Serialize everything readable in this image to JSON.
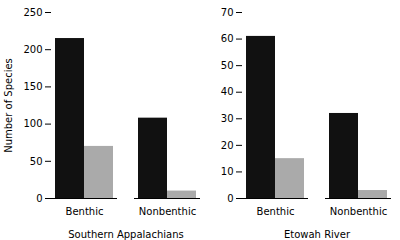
{
  "chart_data": [
    {
      "type": "bar",
      "xlabel": "Southern Appalachians",
      "ylabel": "Number of Species",
      "categories": [
        "Benthic",
        "Nonbenthic"
      ],
      "series": [
        {
          "color": "#111111",
          "values": [
            215,
            108
          ]
        },
        {
          "color": "#aaaaaa",
          "values": [
            70,
            10
          ]
        }
      ],
      "ylim": [
        0,
        250
      ],
      "yticks": [
        0,
        50,
        100,
        150,
        200,
        250
      ]
    },
    {
      "type": "bar",
      "xlabel": "Etowah River",
      "categories": [
        "Benthic",
        "Nonbenthic"
      ],
      "series": [
        {
          "color": "#111111",
          "values": [
            61,
            32
          ]
        },
        {
          "color": "#aaaaaa",
          "values": [
            15,
            3
          ]
        }
      ],
      "ylim": [
        0,
        70
      ],
      "yticks": [
        0,
        10,
        20,
        30,
        40,
        50,
        60,
        70
      ]
    }
  ]
}
